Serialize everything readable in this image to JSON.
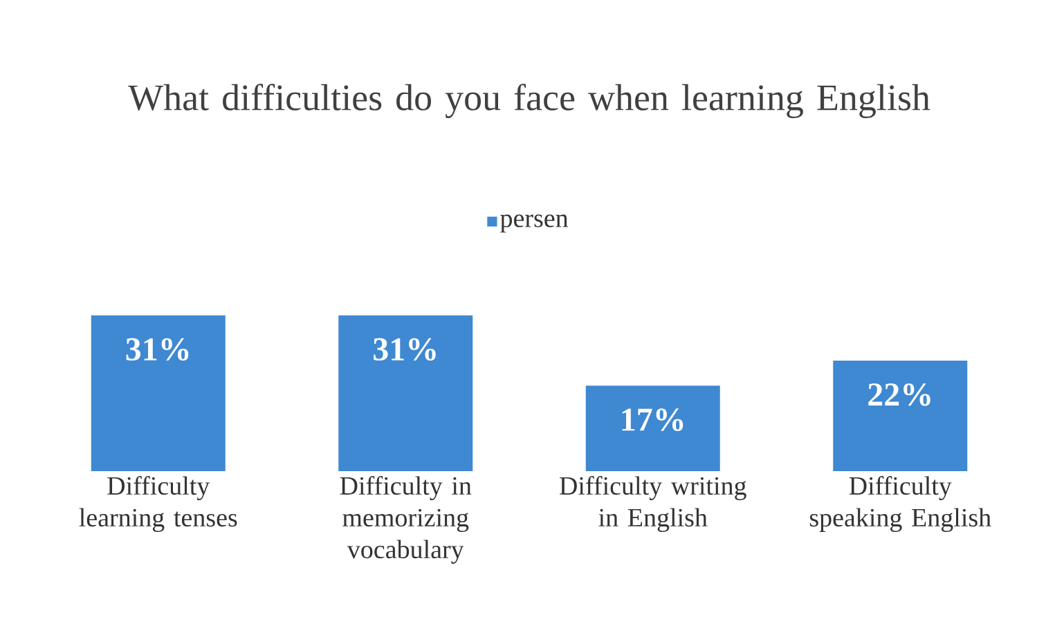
{
  "chart_data": {
    "type": "bar",
    "title": "What difficulties do you face when learning English",
    "categories": [
      "Difficulty learning tenses",
      "Difficulty in memorizing vocabulary",
      "Difficulty writing in English",
      "Difficulty speaking English"
    ],
    "series": [
      {
        "name": "persen",
        "color": "#3f88d2",
        "values": [
          31,
          31,
          17,
          22
        ],
        "value_labels": [
          "31%",
          "31%",
          "17%",
          "22%"
        ]
      }
    ],
    "legend": "top"
  }
}
